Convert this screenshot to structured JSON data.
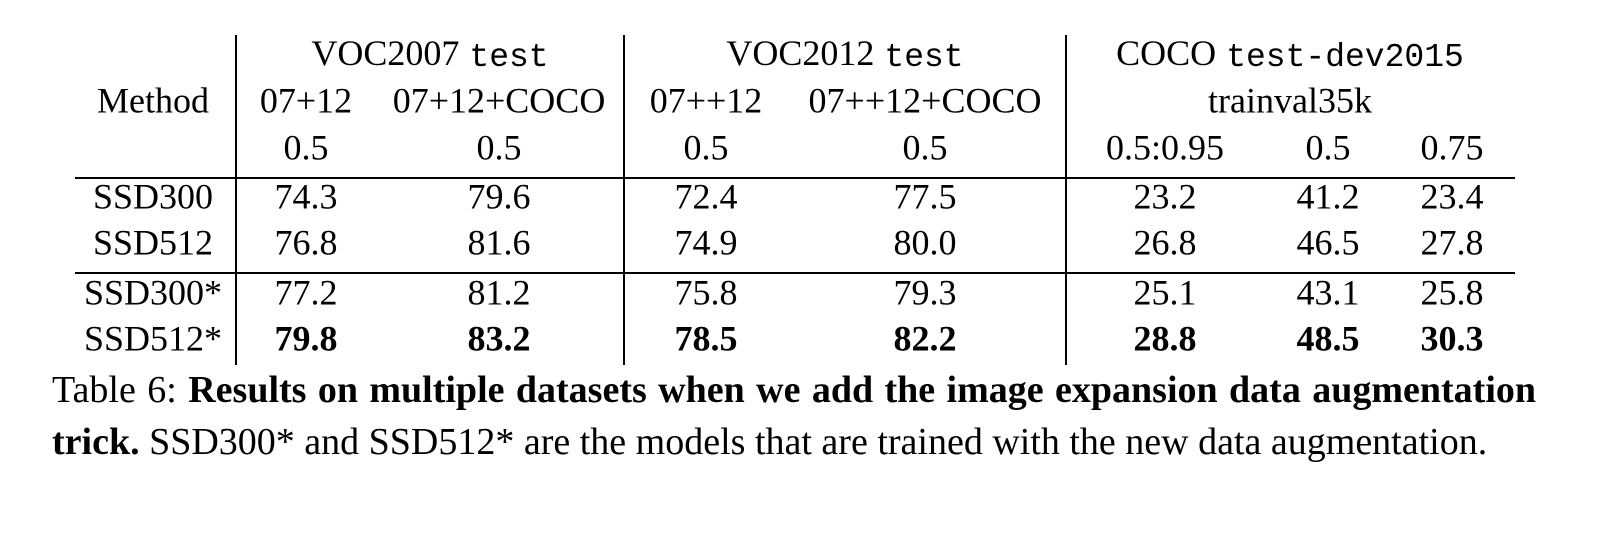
{
  "table": {
    "groups": [
      {
        "name": "VOC2007",
        "split": "test"
      },
      {
        "name": "VOC2012",
        "split": "test"
      },
      {
        "name": "COCO",
        "split": "test-dev2015"
      }
    ],
    "method_header": "Method",
    "training_sets": [
      "07+12",
      "07+12+COCO",
      "07++12",
      "07++12+COCO",
      "trainval35k"
    ],
    "iou_thresholds": [
      "0.5",
      "0.5",
      "0.5",
      "0.5",
      "0.5:0.95",
      "0.5",
      "0.75"
    ],
    "rows": [
      {
        "method": "SSD300",
        "values": [
          "74.3",
          "79.6",
          "72.4",
          "77.5",
          "23.2",
          "41.2",
          "23.4"
        ],
        "bold": false
      },
      {
        "method": "SSD512",
        "values": [
          "76.8",
          "81.6",
          "74.9",
          "80.0",
          "26.8",
          "46.5",
          "27.8"
        ],
        "bold": false
      },
      {
        "method": "SSD300*",
        "values": [
          "77.2",
          "81.2",
          "75.8",
          "79.3",
          "25.1",
          "43.1",
          "25.8"
        ],
        "bold": false
      },
      {
        "method": "SSD512*",
        "values": [
          "79.8",
          "83.2",
          "78.5",
          "82.2",
          "28.8",
          "48.5",
          "30.3"
        ],
        "bold": true
      }
    ]
  },
  "caption": {
    "label": "Table 6:",
    "title": "Results on multiple datasets when we add the image expansion data augmentation trick.",
    "text": "SSD300* and SSD512* are the models that are trained with the new data augmentation."
  }
}
